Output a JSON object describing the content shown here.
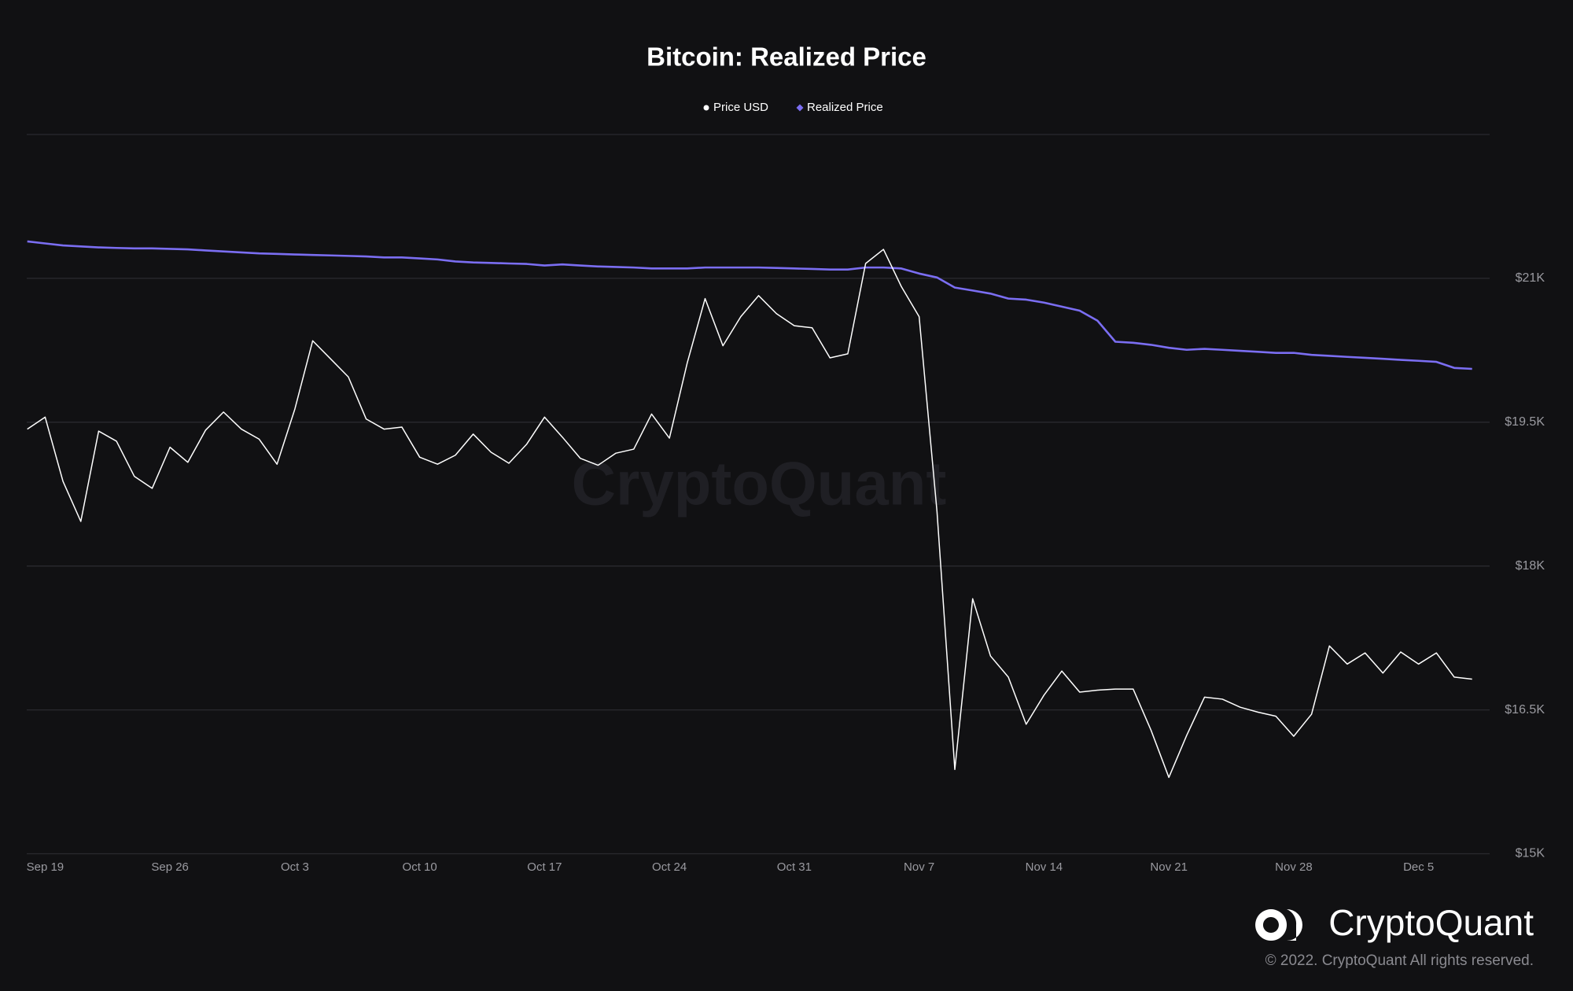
{
  "chart_data": {
    "type": "line",
    "title": "Bitcoin: Realized Price",
    "watermark": "CryptoQuant",
    "brand": "CryptoQuant",
    "copyright": "© 2022. CryptoQuant All rights reserved.",
    "categories": [
      null,
      "Sep 19",
      null,
      null,
      null,
      null,
      null,
      null,
      "Sep 26",
      null,
      null,
      null,
      null,
      null,
      null,
      "Oct 3",
      null,
      null,
      null,
      null,
      null,
      null,
      "Oct 10",
      null,
      null,
      null,
      null,
      null,
      null,
      "Oct 17",
      null,
      null,
      null,
      null,
      null,
      null,
      "Oct 24",
      null,
      null,
      null,
      null,
      null,
      null,
      "Oct 31",
      null,
      null,
      null,
      null,
      null,
      null,
      "Nov 7",
      null,
      null,
      null,
      null,
      null,
      null,
      "Nov 14",
      null,
      null,
      null,
      null,
      null,
      null,
      "Nov 21",
      null,
      null,
      null,
      null,
      null,
      null,
      "Nov 28",
      null,
      null,
      null,
      null,
      null,
      null,
      "Dec 5",
      null,
      null,
      null
    ],
    "series": [
      {
        "name": "Price USD",
        "color": "#ffffff",
        "marker": "circle",
        "values": [
          19428,
          19553,
          18884,
          18465,
          19407,
          19302,
          18936,
          18810,
          19239,
          19082,
          19418,
          19606,
          19428,
          19323,
          19062,
          19637,
          20349,
          20161,
          19972,
          19533,
          19428,
          19449,
          19135,
          19062,
          19156,
          19376,
          19187,
          19072,
          19271,
          19553,
          19344,
          19124,
          19051,
          19177,
          19219,
          19585,
          19334,
          20119,
          20789,
          20297,
          20600,
          20820,
          20632,
          20506,
          20485,
          20171,
          20213,
          21155,
          21302,
          20915,
          20600,
          18570,
          15879,
          17659,
          17062,
          16842,
          16350,
          16654,
          16905,
          16685,
          16706,
          16717,
          16717,
          16288,
          15796,
          16235,
          16633,
          16612,
          16528,
          16476,
          16434,
          16225,
          16455,
          17167,
          16978,
          17094,
          16884,
          17104,
          16978,
          17094,
          16842,
          16821
        ]
      },
      {
        "name": "Realized Price",
        "color": "#7b6ef2",
        "marker": "diamond",
        "values": [
          21385,
          21364,
          21343,
          21333,
          21323,
          21317,
          21312,
          21312,
          21307,
          21302,
          21291,
          21281,
          21270,
          21260,
          21255,
          21249,
          21244,
          21239,
          21234,
          21228,
          21218,
          21218,
          21208,
          21197,
          21176,
          21166,
          21161,
          21155,
          21150,
          21134,
          21145,
          21134,
          21124,
          21119,
          21113,
          21103,
          21103,
          21103,
          21113,
          21113,
          21113,
          21113,
          21108,
          21103,
          21098,
          21092,
          21092,
          21113,
          21113,
          21103,
          21050,
          21009,
          20904,
          20873,
          20841,
          20789,
          20778,
          20747,
          20705,
          20663,
          20558,
          20339,
          20328,
          20307,
          20276,
          20255,
          20265,
          20255,
          20244,
          20234,
          20223,
          20223,
          20202,
          20192,
          20181,
          20171,
          20161,
          20150,
          20140,
          20129,
          20066,
          20056
        ]
      }
    ],
    "ylim": [
      15000,
      22500
    ],
    "yticks": [
      {
        "value": 15000,
        "label": "$15K"
      },
      {
        "value": 16500,
        "label": "$16.5K"
      },
      {
        "value": 18000,
        "label": "$18K"
      },
      {
        "value": 19500,
        "label": "$19.5K"
      },
      {
        "value": 21000,
        "label": "$21K"
      }
    ],
    "grid": true
  }
}
